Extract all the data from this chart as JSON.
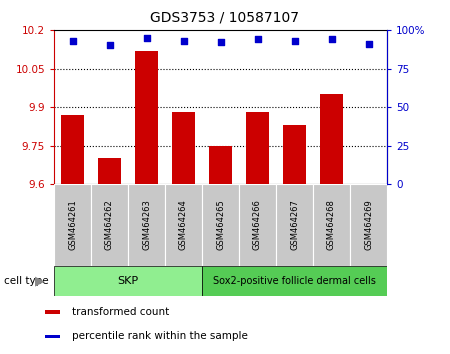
{
  "title": "GDS3753 / 10587107",
  "samples": [
    "GSM464261",
    "GSM464262",
    "GSM464263",
    "GSM464264",
    "GSM464265",
    "GSM464266",
    "GSM464267",
    "GSM464268",
    "GSM464269"
  ],
  "transformed_count": [
    9.87,
    9.7,
    10.12,
    9.88,
    9.75,
    9.88,
    9.83,
    9.95,
    9.6
  ],
  "percentile_rank": [
    93,
    90,
    95,
    93,
    92,
    94,
    93,
    94,
    91
  ],
  "ylim_left": [
    9.6,
    10.2
  ],
  "yticks_left": [
    9.6,
    9.75,
    9.9,
    10.05,
    10.2
  ],
  "ylim_right": [
    0,
    100
  ],
  "yticks_right": [
    0,
    25,
    50,
    75,
    100
  ],
  "ytick_labels_right": [
    "0",
    "25",
    "50",
    "75",
    "100%"
  ],
  "bar_color": "#cc0000",
  "dot_color": "#0000cc",
  "cell_type_groups": [
    {
      "label": "SKP",
      "start": 0,
      "end": 3,
      "color": "#90ee90"
    },
    {
      "label": "Sox2-positive follicle dermal cells",
      "start": 4,
      "end": 8,
      "color": "#55cc55"
    }
  ],
  "cell_type_label": "cell type",
  "legend_items": [
    {
      "color": "#cc0000",
      "label": "transformed count"
    },
    {
      "color": "#0000cc",
      "label": "percentile rank within the sample"
    }
  ],
  "sample_box_color": "#c8c8c8",
  "plot_bg_color": "#ffffff"
}
